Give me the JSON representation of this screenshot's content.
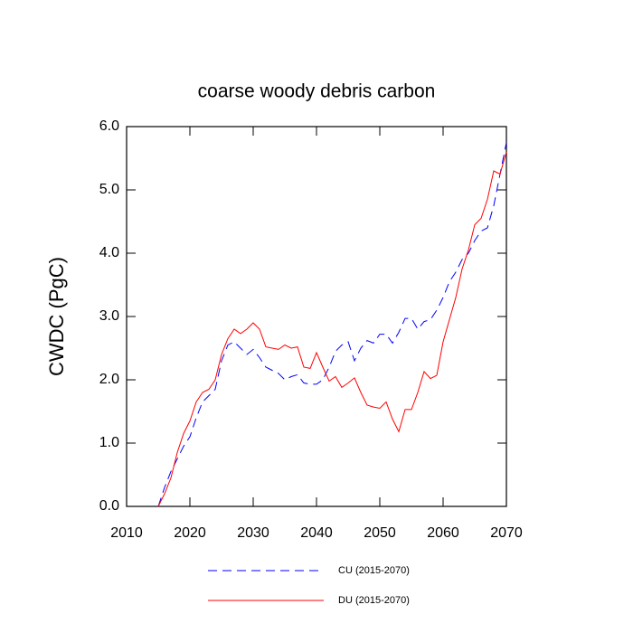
{
  "chart_data": {
    "type": "line",
    "title": "coarse woody debris carbon",
    "y_label": "CWDC  (PgC)",
    "x": [
      2015,
      2016,
      2017,
      2018,
      2019,
      2020,
      2021,
      2022,
      2023,
      2024,
      2025,
      2026,
      2027,
      2028,
      2029,
      2030,
      2031,
      2032,
      2033,
      2034,
      2035,
      2036,
      2037,
      2038,
      2039,
      2040,
      2041,
      2042,
      2043,
      2044,
      2045,
      2046,
      2047,
      2048,
      2049,
      2050,
      2051,
      2052,
      2053,
      2054,
      2055,
      2056,
      2057,
      2058,
      2059,
      2060,
      2061,
      2062,
      2063,
      2064,
      2065,
      2066,
      2067,
      2068,
      2069,
      2070
    ],
    "series": [
      {
        "name": "CU (2015-2070)",
        "color": "#0000ff",
        "dashed": true,
        "values": [
          0.0,
          0.3,
          0.55,
          0.75,
          0.95,
          1.1,
          1.4,
          1.65,
          1.75,
          1.85,
          2.3,
          2.55,
          2.6,
          2.5,
          2.4,
          2.48,
          2.35,
          2.2,
          2.15,
          2.1,
          2.0,
          2.05,
          2.08,
          1.95,
          1.93,
          1.93,
          2.0,
          2.2,
          2.45,
          2.55,
          2.6,
          2.3,
          2.5,
          2.62,
          2.58,
          2.72,
          2.72,
          2.58,
          2.75,
          2.97,
          2.97,
          2.8,
          2.92,
          2.95,
          3.1,
          3.3,
          3.55,
          3.7,
          3.9,
          4.0,
          4.2,
          4.35,
          4.4,
          4.75,
          5.25,
          5.75
        ]
      },
      {
        "name": "DU (2015-2070)",
        "color": "#ff0000",
        "dashed": false,
        "values": [
          0.0,
          0.2,
          0.45,
          0.85,
          1.15,
          1.35,
          1.65,
          1.8,
          1.85,
          2.0,
          2.4,
          2.65,
          2.8,
          2.73,
          2.8,
          2.9,
          2.8,
          2.52,
          2.5,
          2.48,
          2.55,
          2.5,
          2.52,
          2.2,
          2.18,
          2.43,
          2.2,
          1.98,
          2.05,
          1.88,
          1.95,
          2.03,
          1.8,
          1.6,
          1.57,
          1.55,
          1.65,
          1.38,
          1.18,
          1.53,
          1.53,
          1.8,
          2.13,
          2.02,
          2.07,
          2.6,
          2.95,
          3.3,
          3.75,
          4.05,
          4.45,
          4.55,
          4.85,
          5.3,
          5.25,
          5.6
        ]
      }
    ],
    "xlim": [
      2010,
      2070
    ],
    "xticks": [
      2010,
      2020,
      2030,
      2040,
      2050,
      2060,
      2070
    ],
    "ylim": [
      0,
      6
    ],
    "yticks": [
      {
        "value": 0,
        "label": "0.0"
      },
      {
        "value": 1,
        "label": "1.0"
      },
      {
        "value": 2,
        "label": "2.0"
      },
      {
        "value": 3,
        "label": "3.0"
      },
      {
        "value": 4,
        "label": "4.0"
      },
      {
        "value": 5,
        "label": "5.0"
      },
      {
        "value": 6,
        "label": "6.0"
      }
    ]
  }
}
